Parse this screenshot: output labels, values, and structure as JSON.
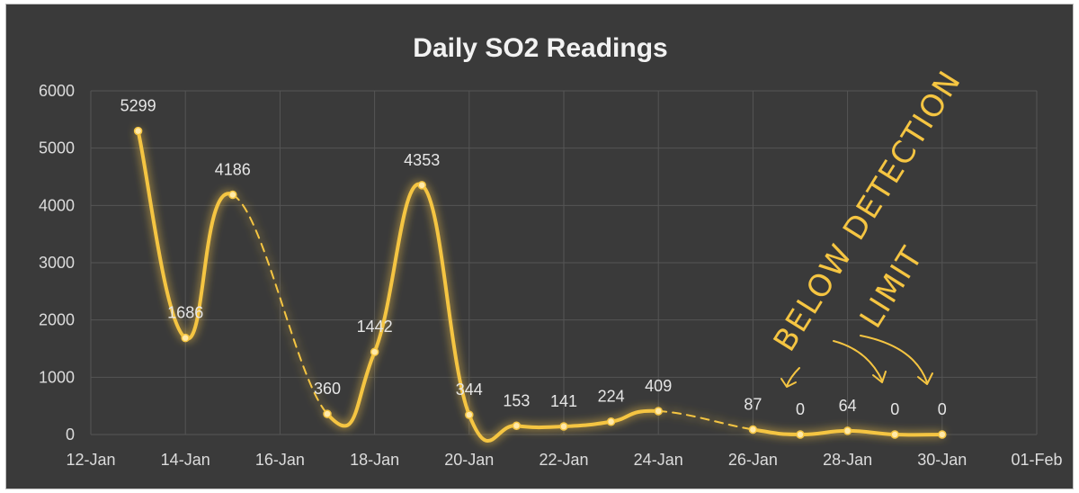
{
  "chart_data": {
    "type": "line",
    "title": "Daily SO2 Readings",
    "xlabel": "",
    "ylabel": "",
    "ylim": [
      0,
      6000
    ],
    "yticks": [
      0,
      1000,
      2000,
      3000,
      4000,
      5000,
      6000
    ],
    "x_tick_labels": [
      "12-Jan",
      "14-Jan",
      "16-Jan",
      "18-Jan",
      "20-Jan",
      "22-Jan",
      "24-Jan",
      "26-Jan",
      "28-Jan",
      "30-Jan",
      "01-Feb"
    ],
    "grid": true,
    "series": [
      {
        "points": [
          {
            "x": "13-Jan",
            "y": 5299
          },
          {
            "x": "14-Jan",
            "y": 1686
          },
          {
            "x": "15-Jan",
            "y": 4186
          },
          {
            "x": "17-Jan",
            "y": 360
          },
          {
            "x": "18-Jan",
            "y": 1442
          },
          {
            "x": "19-Jan",
            "y": 4353
          },
          {
            "x": "20-Jan",
            "y": 344
          },
          {
            "x": "21-Jan",
            "y": 153
          },
          {
            "x": "22-Jan",
            "y": 141
          },
          {
            "x": "23-Jan",
            "y": 224
          },
          {
            "x": "24-Jan",
            "y": 409
          },
          {
            "x": "26-Jan",
            "y": 87
          },
          {
            "x": "27-Jan",
            "y": 0
          },
          {
            "x": "28-Jan",
            "y": 64
          },
          {
            "x": "29-Jan",
            "y": 0
          },
          {
            "x": "30-Jan",
            "y": 0
          }
        ],
        "color": "#f5c542"
      }
    ],
    "annotations": [
      {
        "text": "BELOW DETECTION",
        "style": "handwritten"
      },
      {
        "text": "LIMIT",
        "style": "handwritten"
      }
    ]
  }
}
